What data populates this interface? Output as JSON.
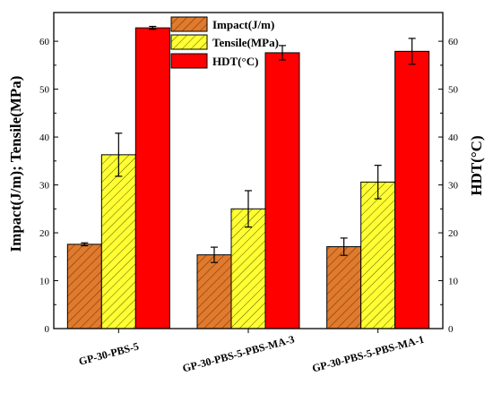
{
  "chart_data": {
    "type": "bar",
    "categories": [
      "GP-30-PBS-5",
      "GP-30-PBS-5-PBS-MA-3",
      "GP-30-PBS-5-PBS-MA-1"
    ],
    "series": [
      {
        "name": "Impact(J/m)",
        "values": [
          17.6,
          15.4,
          17.1
        ],
        "errors": [
          0.3,
          1.6,
          1.8
        ],
        "color": "#E07A2E",
        "pattern": "hatch",
        "axis": "left"
      },
      {
        "name": "Tensile(MPa)",
        "values": [
          36.3,
          25.0,
          30.6
        ],
        "errors": [
          4.5,
          3.8,
          3.5
        ],
        "color": "#FFFF33",
        "pattern": "hatch",
        "axis": "left"
      },
      {
        "name": "HDT(°C)",
        "values": [
          62.8,
          57.6,
          57.9
        ],
        "errors": [
          0.3,
          1.5,
          2.7
        ],
        "color": "#FF0000",
        "pattern": "solid",
        "axis": "right"
      }
    ],
    "ylabel_left": "Impact(J/m);  Tensile(MPa)",
    "ylabel_right": "HDT(°C)",
    "ylim_left": [
      0,
      66
    ],
    "ylim_right": [
      0,
      66
    ],
    "yticks": [
      0,
      10,
      20,
      30,
      40,
      50,
      60
    ],
    "legend_position": "top-center",
    "grid": false
  }
}
